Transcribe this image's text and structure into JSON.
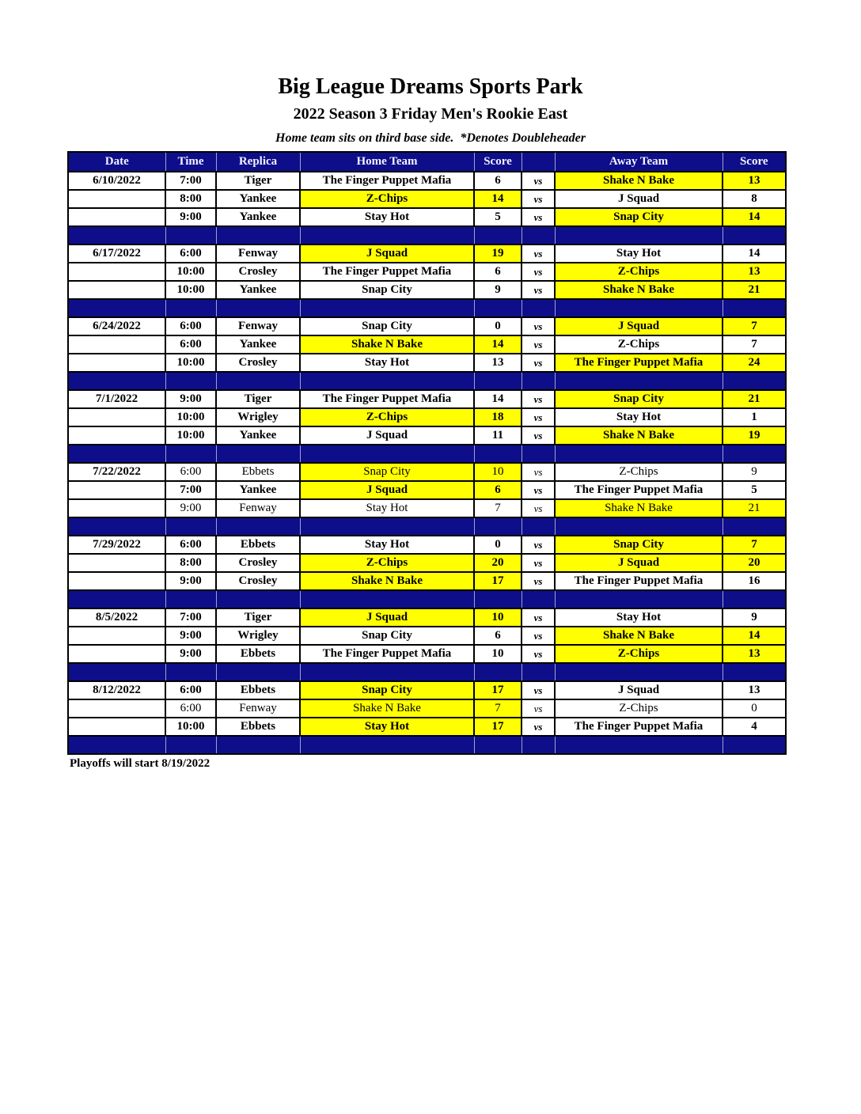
{
  "page": {
    "title": "Big League Dreams Sports Park",
    "subtitle": "2022 Season 3 Friday Men's Rookie East",
    "note": "Home team sits on third base side.  *Denotes Doubleheader",
    "footer": "Playoffs will start 8/19/2022"
  },
  "colors": {
    "header_bg": "#0e0e8a",
    "header_text": "#f2f2ff",
    "highlight": "#ffff00",
    "row_bg": "#ffffff",
    "border": "#000000"
  },
  "table": {
    "columns": [
      "Date",
      "Time",
      "Replica",
      "Home Team",
      "Score",
      "",
      "Away Team",
      "Score"
    ],
    "vs_label": "vs",
    "groups": [
      {
        "date": "6/10/2022",
        "games": [
          {
            "time": "7:00",
            "replica": "Tiger",
            "home": "The Finger Puppet Mafia",
            "home_score": "6",
            "home_hl": false,
            "away": "Shake N Bake",
            "away_score": "13",
            "away_hl": true,
            "bold": true
          },
          {
            "time": "8:00",
            "replica": "Yankee",
            "home": "Z-Chips",
            "home_score": "14",
            "home_hl": true,
            "away": "J Squad",
            "away_score": "8",
            "away_hl": false,
            "bold": true
          },
          {
            "time": "9:00",
            "replica": "Yankee",
            "home": "Stay Hot",
            "home_score": "5",
            "home_hl": false,
            "away": "Snap City",
            "away_score": "14",
            "away_hl": true,
            "bold": true
          }
        ]
      },
      {
        "date": "6/17/2022",
        "games": [
          {
            "time": "6:00",
            "replica": "Fenway",
            "home": "J Squad",
            "home_score": "19",
            "home_hl": true,
            "away": "Stay Hot",
            "away_score": "14",
            "away_hl": false,
            "bold": true
          },
          {
            "time": "10:00",
            "replica": "Crosley",
            "home": "The Finger Puppet Mafia",
            "home_score": "6",
            "home_hl": false,
            "away": "Z-Chips",
            "away_score": "13",
            "away_hl": true,
            "bold": true
          },
          {
            "time": "10:00",
            "replica": "Yankee",
            "home": "Snap City",
            "home_score": "9",
            "home_hl": false,
            "away": "Shake N Bake",
            "away_score": "21",
            "away_hl": true,
            "bold": true
          }
        ]
      },
      {
        "date": "6/24/2022",
        "games": [
          {
            "time": "6:00",
            "replica": "Fenway",
            "home": "Snap City",
            "home_score": "0",
            "home_hl": false,
            "away": "J Squad",
            "away_score": "7",
            "away_hl": true,
            "bold": true
          },
          {
            "time": "6:00",
            "replica": "Yankee",
            "home": "Shake N Bake",
            "home_score": "14",
            "home_hl": true,
            "away": "Z-Chips",
            "away_score": "7",
            "away_hl": false,
            "bold": true
          },
          {
            "time": "10:00",
            "replica": "Crosley",
            "home": "Stay Hot",
            "home_score": "13",
            "home_hl": false,
            "away": "The Finger Puppet Mafia",
            "away_score": "24",
            "away_hl": true,
            "bold": true
          }
        ]
      },
      {
        "date": "7/1/2022",
        "games": [
          {
            "time": "9:00",
            "replica": "Tiger",
            "home": "The Finger Puppet Mafia",
            "home_score": "14",
            "home_hl": false,
            "away": "Snap City",
            "away_score": "21",
            "away_hl": true,
            "bold": true
          },
          {
            "time": "10:00",
            "replica": "Wrigley",
            "home": "Z-Chips",
            "home_score": "18",
            "home_hl": true,
            "away": "Stay Hot",
            "away_score": "1",
            "away_hl": false,
            "bold": true
          },
          {
            "time": "10:00",
            "replica": "Yankee",
            "home": "J Squad",
            "home_score": "11",
            "home_hl": false,
            "away": "Shake N Bake",
            "away_score": "19",
            "away_hl": true,
            "bold": true
          }
        ]
      },
      {
        "date": "7/22/2022",
        "games": [
          {
            "time": "6:00",
            "replica": "Ebbets",
            "home": "Snap City",
            "home_score": "10",
            "home_hl": true,
            "away": "Z-Chips",
            "away_score": "9",
            "away_hl": false,
            "bold": false
          },
          {
            "time": "7:00",
            "replica": "Yankee",
            "home": "J Squad",
            "home_score": "6",
            "home_hl": true,
            "away": "The Finger Puppet Mafia",
            "away_score": "5",
            "away_hl": false,
            "bold": true
          },
          {
            "time": "9:00",
            "replica": "Fenway",
            "home": "Stay Hot",
            "home_score": "7",
            "home_hl": false,
            "away": "Shake N Bake",
            "away_score": "21",
            "away_hl": true,
            "bold": false
          }
        ]
      },
      {
        "date": "7/29/2022",
        "games": [
          {
            "time": "6:00",
            "replica": "Ebbets",
            "home": "Stay Hot",
            "home_score": "0",
            "home_hl": false,
            "away": "Snap City",
            "away_score": "7",
            "away_hl": true,
            "bold": true
          },
          {
            "time": "8:00",
            "replica": "Crosley",
            "home": "Z-Chips",
            "home_score": "20",
            "home_hl": true,
            "away": "J Squad",
            "away_score": "20",
            "away_hl": true,
            "bold": true
          },
          {
            "time": "9:00",
            "replica": "Crosley",
            "home": "Shake N Bake",
            "home_score": "17",
            "home_hl": true,
            "away": "The Finger Puppet Mafia",
            "away_score": "16",
            "away_hl": false,
            "bold": true
          }
        ]
      },
      {
        "date": "8/5/2022",
        "games": [
          {
            "time": "7:00",
            "replica": "Tiger",
            "home": "J Squad",
            "home_score": "10",
            "home_hl": true,
            "away": "Stay Hot",
            "away_score": "9",
            "away_hl": false,
            "bold": true
          },
          {
            "time": "9:00",
            "replica": "Wrigley",
            "home": "Snap City",
            "home_score": "6",
            "home_hl": false,
            "away": "Shake N Bake",
            "away_score": "14",
            "away_hl": true,
            "bold": true
          },
          {
            "time": "9:00",
            "replica": "Ebbets",
            "home": "The Finger Puppet Mafia",
            "home_score": "10",
            "home_hl": false,
            "away": "Z-Chips",
            "away_score": "13",
            "away_hl": true,
            "bold": true
          }
        ]
      },
      {
        "date": "8/12/2022",
        "games": [
          {
            "time": "6:00",
            "replica": "Ebbets",
            "home": "Snap City",
            "home_score": "17",
            "home_hl": true,
            "away": "J Squad",
            "away_score": "13",
            "away_hl": false,
            "bold": true
          },
          {
            "time": "6:00",
            "replica": "Fenway",
            "home": "Shake N Bake",
            "home_score": "7",
            "home_hl": true,
            "away": "Z-Chips",
            "away_score": "0",
            "away_hl": false,
            "bold": false
          },
          {
            "time": "10:00",
            "replica": "Ebbets",
            "home": "Stay Hot",
            "home_score": "17",
            "home_hl": true,
            "away": "The Finger Puppet Mafia",
            "away_score": "4",
            "away_hl": false,
            "bold": true
          }
        ]
      }
    ]
  }
}
